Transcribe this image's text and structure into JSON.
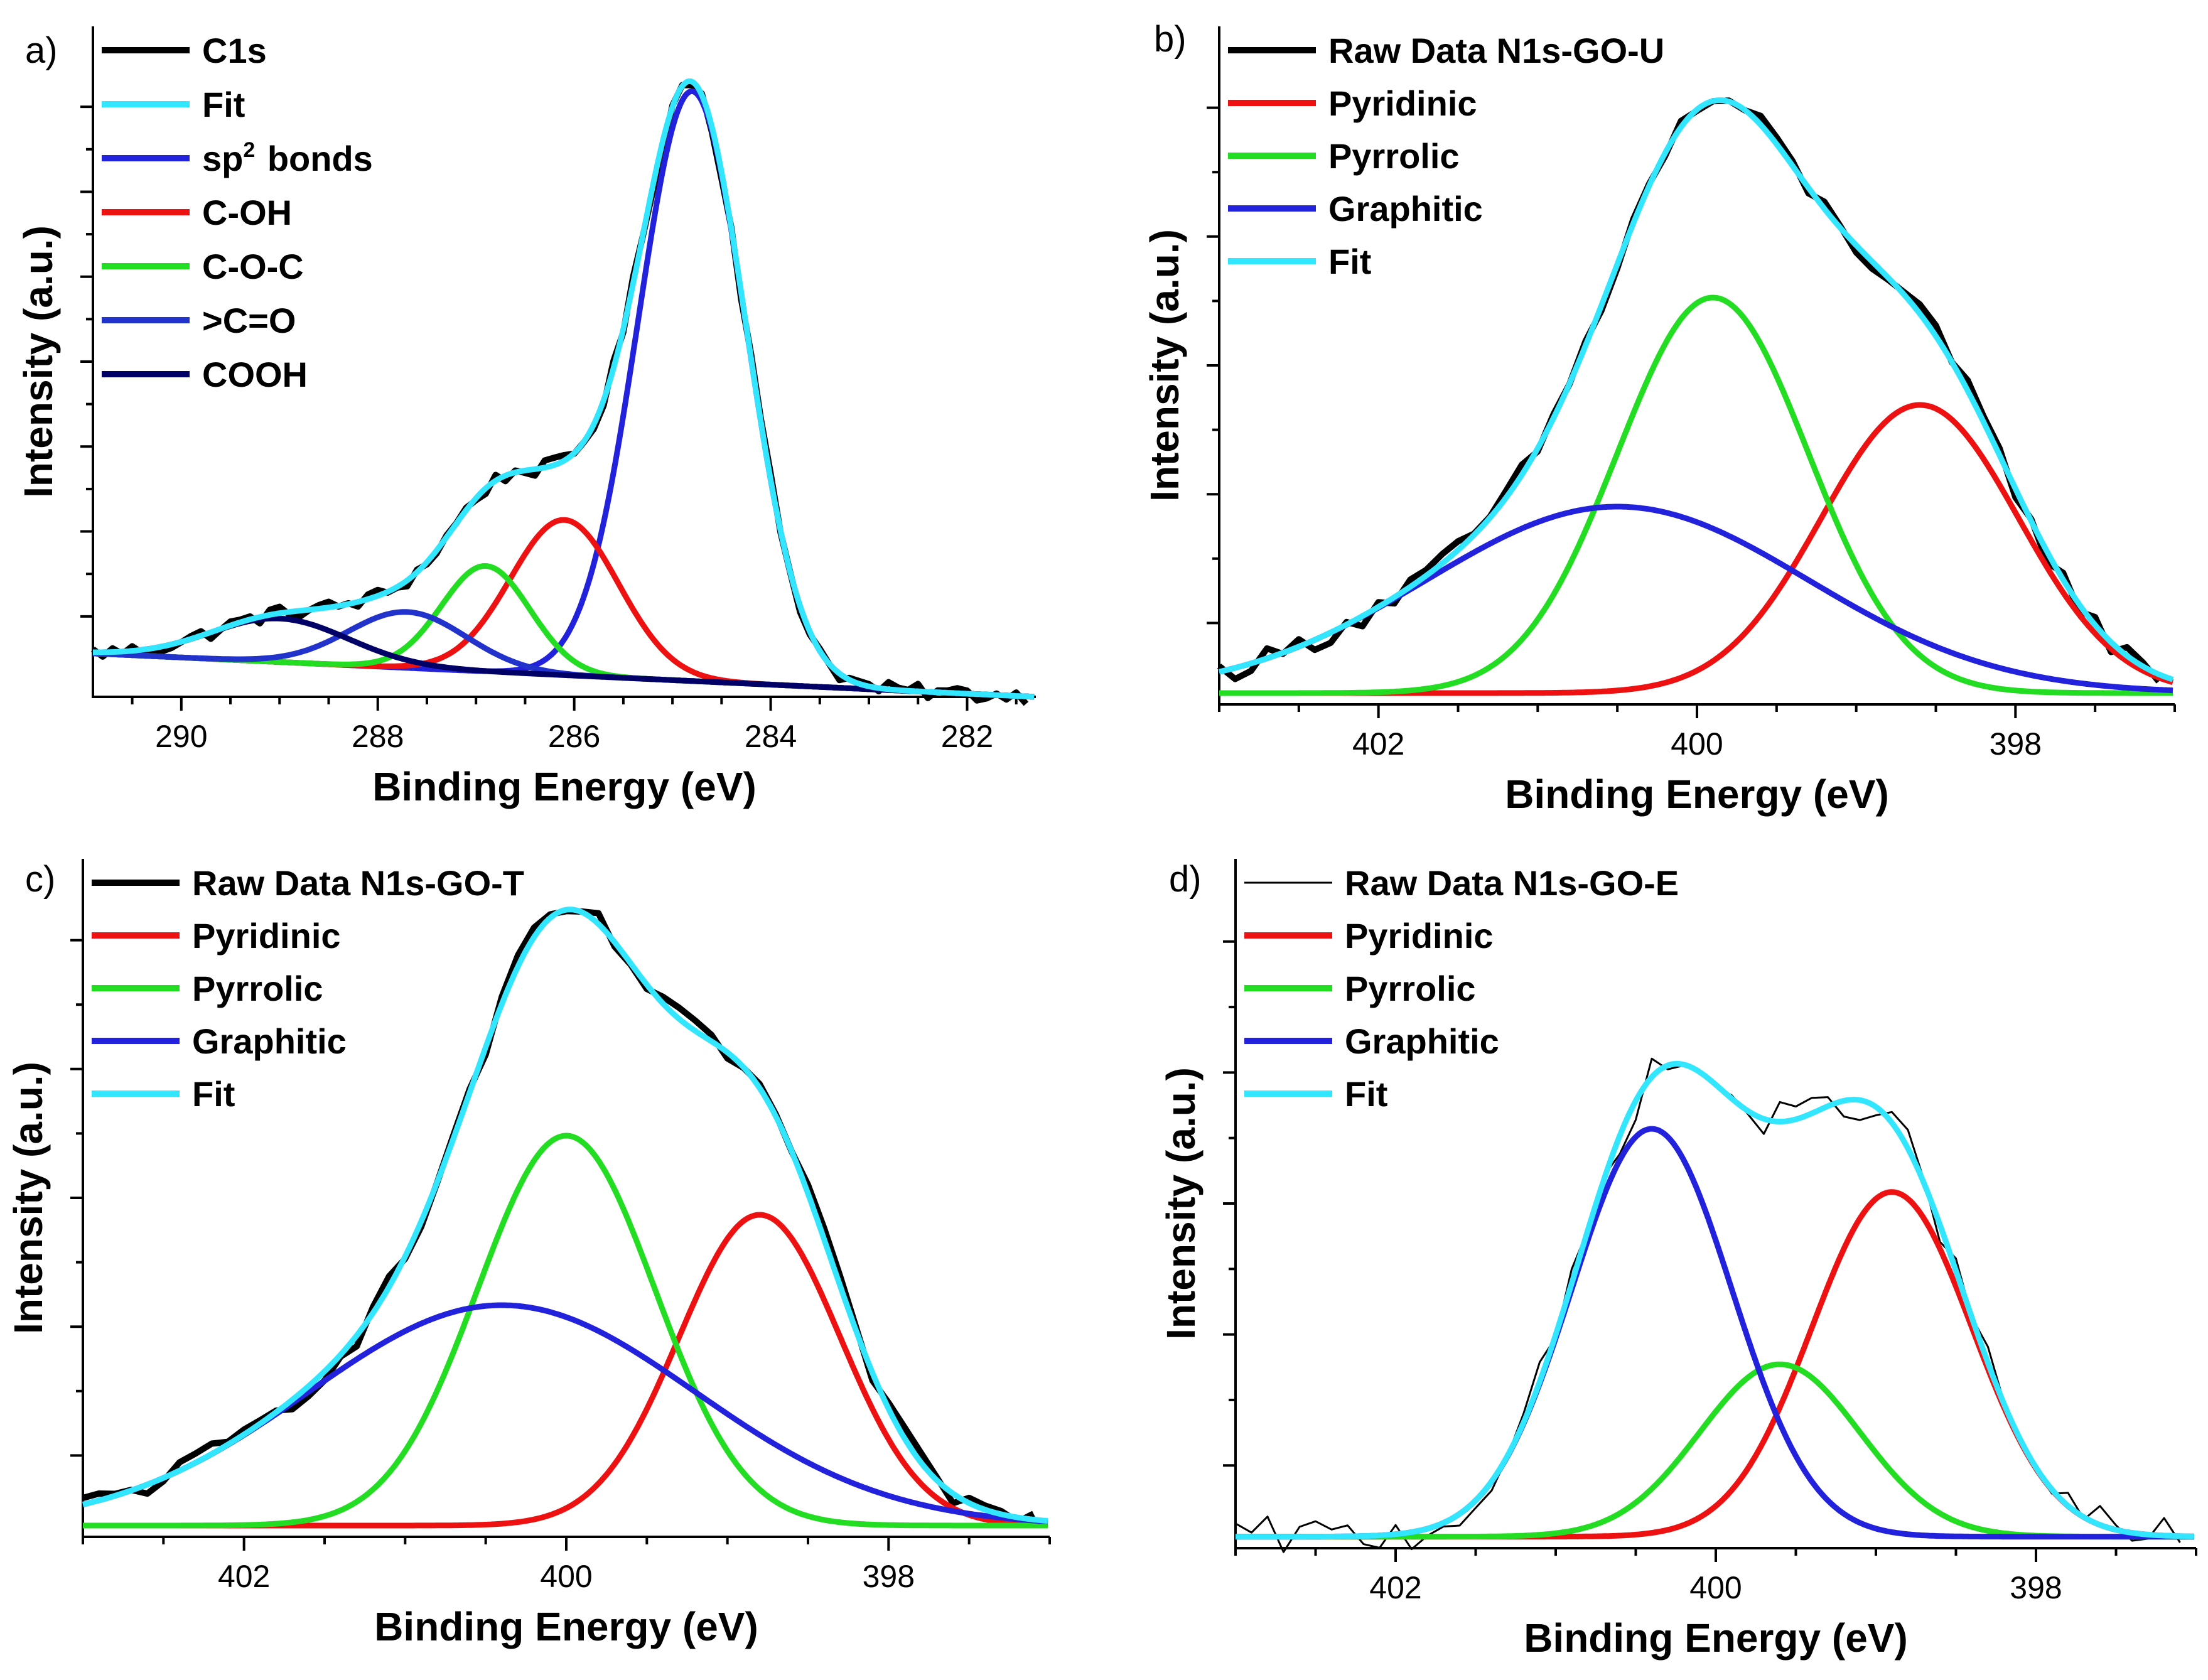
{
  "figure": "XPS spectra (4 panels)",
  "chart_data": [
    {
      "panel": "a)",
      "type": "line",
      "xlabel": "Binding Energy (eV)",
      "ylabel": "Intensity (a.u.)",
      "xlim": [
        290.9,
        281.3
      ],
      "ylim": [
        0,
        1.08
      ],
      "x_ticks": [
        290,
        288,
        286,
        284,
        282
      ],
      "x_tick_labels": [
        "290",
        "288",
        "286",
        "284",
        "282"
      ],
      "y_tick_count": 6,
      "colors": {
        "c1s": "#000000",
        "fit": "#33e6ff",
        "sp2": "#2222dd",
        "coh": "#ee1111",
        "coc": "#22dd22",
        "co": "#2233cc",
        "cooh": "#000066"
      },
      "legend": [
        {
          "key": "c1s",
          "label": "C1s"
        },
        {
          "key": "fit",
          "label": "Fit"
        },
        {
          "key": "sp2",
          "label": "sp",
          "sup": "2",
          "suffix": " bonds"
        },
        {
          "key": "coh",
          "label": "C-OH"
        },
        {
          "key": "coc",
          "label": "C-O-C"
        },
        {
          "key": "co",
          "label": ">C=O"
        },
        {
          "key": "cooh",
          "label": "COOH"
        }
      ],
      "background": {
        "x_start": 290.9,
        "y_start": 0.07,
        "x_end": 281.3,
        "y_end": 0.0
      },
      "components": [
        {
          "key": "sp2",
          "name": "sp2 bonds",
          "center": 284.8,
          "height": 0.95,
          "sigma": 0.55
        },
        {
          "key": "coh",
          "name": "C-OH",
          "center": 286.1,
          "height": 0.25,
          "sigma": 0.55
        },
        {
          "key": "coc",
          "name": "C-O-C",
          "center": 286.9,
          "height": 0.17,
          "sigma": 0.45
        },
        {
          "key": "co",
          "name": ">C=O",
          "center": 287.7,
          "height": 0.09,
          "sigma": 0.6
        },
        {
          "key": "cooh",
          "name": "COOH",
          "center": 289.0,
          "height": 0.07,
          "sigma": 0.7
        }
      ],
      "raw": {
        "key": "c1s",
        "noise": 0.012,
        "step": 0.1
      }
    },
    {
      "panel": "b)",
      "type": "line",
      "xlabel": "Binding Energy (eV)",
      "ylabel": "Intensity (a.u.)",
      "xlim": [
        403.0,
        397.0
      ],
      "ylim": [
        -0.02,
        1.18
      ],
      "x_ticks": [
        402,
        400,
        398
      ],
      "x_tick_labels": [
        "402",
        "400",
        "398"
      ],
      "y_tick_count": 4,
      "colors": {
        "raw": "#000000",
        "pyridinic": "#ee1111",
        "pyrrolic": "#22dd22",
        "graphitic": "#2222dd",
        "fit": "#33e6ff"
      },
      "legend": [
        {
          "key": "raw",
          "label": "Raw Data N1s-GO-U"
        },
        {
          "key": "pyridinic",
          "label": "Pyridinic"
        },
        {
          "key": "pyrrolic",
          "label": "Pyrrolic"
        },
        {
          "key": "graphitic",
          "label": "Graphitic"
        },
        {
          "key": "fit",
          "label": "Fit"
        }
      ],
      "background": {
        "x_start": 403.0,
        "y_start": 0.0,
        "x_end": 397.0,
        "y_end": 0.0
      },
      "components": [
        {
          "key": "pyridinic",
          "name": "Pyridinic",
          "center": 398.6,
          "height": 0.51,
          "sigma": 0.62
        },
        {
          "key": "pyrrolic",
          "name": "Pyrrolic",
          "center": 399.9,
          "height": 0.7,
          "sigma": 0.6
        },
        {
          "key": "graphitic",
          "name": "Graphitic",
          "center": 400.5,
          "height": 0.33,
          "sigma": 1.2
        }
      ],
      "raw": {
        "key": "raw",
        "noise": 0.02,
        "step": 0.1
      }
    },
    {
      "panel": "c)",
      "type": "line",
      "xlabel": "Binding Energy (eV)",
      "ylabel": "Intensity (a.u.)",
      "xlim": [
        403.0,
        397.0
      ],
      "ylim": [
        -0.02,
        1.18
      ],
      "x_ticks": [
        402,
        400,
        398
      ],
      "x_tick_labels": [
        "402",
        "400",
        "398"
      ],
      "y_tick_count": 4,
      "colors": {
        "raw": "#000000",
        "pyridinic": "#ee1111",
        "pyrrolic": "#22dd22",
        "graphitic": "#2222dd",
        "fit": "#33e6ff"
      },
      "legend": [
        {
          "key": "raw",
          "label": "Raw Data N1s-GO-T"
        },
        {
          "key": "pyridinic",
          "label": "Pyridinic"
        },
        {
          "key": "pyrrolic",
          "label": "Pyrrolic"
        },
        {
          "key": "graphitic",
          "label": "Graphitic"
        },
        {
          "key": "fit",
          "label": "Fit"
        }
      ],
      "background": {
        "x_start": 403.0,
        "y_start": 0.0,
        "x_end": 397.0,
        "y_end": 0.0
      },
      "components": [
        {
          "key": "pyridinic",
          "name": "Pyridinic",
          "center": 398.8,
          "height": 0.55,
          "sigma": 0.5
        },
        {
          "key": "pyrrolic",
          "name": "Pyrrolic",
          "center": 400.0,
          "height": 0.69,
          "sigma": 0.55
        },
        {
          "key": "graphitic",
          "name": "Graphitic",
          "center": 400.4,
          "height": 0.39,
          "sigma": 1.2
        }
      ],
      "raw": {
        "key": "raw",
        "noise": 0.02,
        "step": 0.1
      }
    },
    {
      "panel": "d)",
      "type": "line",
      "xlabel": "Binding Energy (eV)",
      "ylabel": "Intensity (a.u.)",
      "xlim": [
        403.0,
        397.0
      ],
      "ylim": [
        -0.02,
        1.18
      ],
      "x_ticks": [
        402,
        400,
        398
      ],
      "x_tick_labels": [
        "402",
        "400",
        "398"
      ],
      "y_tick_count": 4,
      "colors": {
        "raw": "#000000",
        "pyridinic": "#ee1111",
        "pyrrolic": "#22dd22",
        "graphitic": "#2222dd",
        "fit": "#33e6ff"
      },
      "legend": [
        {
          "key": "raw",
          "label": "Raw Data N1s-GO-E"
        },
        {
          "key": "pyridinic",
          "label": "Pyridinic"
        },
        {
          "key": "pyrrolic",
          "label": "Pyrrolic"
        },
        {
          "key": "graphitic",
          "label": "Graphitic"
        },
        {
          "key": "fit",
          "label": "Fit"
        }
      ],
      "background": {
        "x_start": 403.0,
        "y_start": 0.0,
        "x_end": 397.0,
        "y_end": 0.0
      },
      "components": [
        {
          "key": "pyridinic",
          "name": "Pyridinic",
          "center": 398.9,
          "height": 0.6,
          "sigma": 0.5
        },
        {
          "key": "pyrrolic",
          "name": "Pyrrolic",
          "center": 399.6,
          "height": 0.3,
          "sigma": 0.5
        },
        {
          "key": "graphitic",
          "name": "Graphitic",
          "center": 400.4,
          "height": 0.71,
          "sigma": 0.5
        }
      ],
      "raw": {
        "key": "raw",
        "noise": 0.035,
        "step": 0.1,
        "thin": true
      }
    }
  ]
}
